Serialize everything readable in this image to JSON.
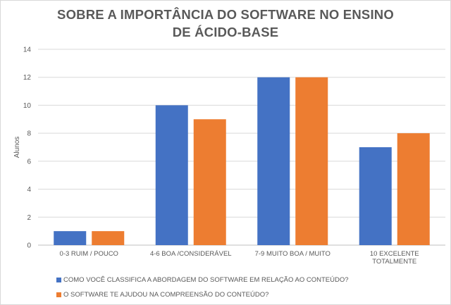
{
  "chart_data": {
    "type": "bar",
    "title_lines": [
      "SOBRE A IMPORTÂNCIA  DO SOFTWARE NO ENSINO",
      "DE ÁCIDO-BASE"
    ],
    "ylabel": "Alunos",
    "xlabel": "",
    "ylim": [
      0,
      14
    ],
    "yticks": [
      0,
      2,
      4,
      6,
      8,
      10,
      12,
      14
    ],
    "grid": true,
    "legend_position": "bottom",
    "categories": [
      [
        "0-3 RUIM  / POUCO"
      ],
      [
        "4-6 BOA /CONSIDERÁVEL"
      ],
      [
        "7-9 MUITO BOA / MUITO"
      ],
      [
        "10 EXCELENTE",
        "TOTALMENTE"
      ]
    ],
    "series": [
      {
        "name": "COMO VOCÊ CLASSIFICA A ABORDAGEM DO SOFTWARE EM RELAÇÃO AO CONTEÚDO?",
        "values": [
          1,
          10,
          12,
          7
        ],
        "color": "#4472C4"
      },
      {
        "name": "O SOFTWARE TE AJUDOU NA COMPREENSÃO DO CONTEÚDO?",
        "values": [
          1,
          9,
          12,
          8
        ],
        "color": "#ED7D31"
      }
    ]
  }
}
